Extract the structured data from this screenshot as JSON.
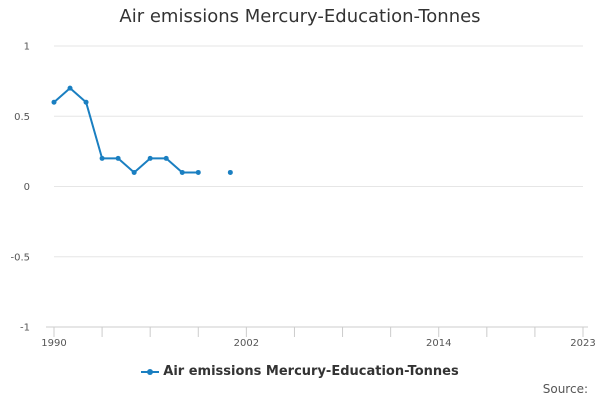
{
  "chart_data": {
    "type": "line",
    "title": "Air emissions Mercury-Education-Tonnes",
    "xlabel": "",
    "ylabel": "",
    "x_range": [
      1990,
      2023
    ],
    "ylim": [
      -1,
      1
    ],
    "x_ticks": [
      1990,
      2002,
      2014,
      2023
    ],
    "x_minor_ticks": [
      1990,
      1993,
      1996,
      1999,
      2002,
      2005,
      2008,
      2011,
      2014,
      2017,
      2020,
      2023
    ],
    "y_ticks": [
      1,
      0.5,
      0,
      -0.5,
      -1
    ],
    "grid": true,
    "legend_position": "bottom",
    "color": "#1a7fc1",
    "series": [
      {
        "name": "Air emissions Mercury-Education-Tonnes",
        "x": [
          1990,
          1991,
          1992,
          1993,
          1994,
          1995,
          1996,
          1997,
          1998,
          1999,
          2000,
          2001,
          2002,
          2003,
          2004,
          2005,
          2006,
          2007,
          2008,
          2009,
          2010,
          2011,
          2012,
          2013,
          2014,
          2015,
          2016,
          2017,
          2018,
          2019,
          2020,
          2021,
          2022,
          2023
        ],
        "y": [
          0.6,
          0.7,
          0.6,
          0.2,
          0.2,
          0.1,
          0.2,
          0.2,
          0.1,
          0.1,
          null,
          0.1,
          null,
          null,
          null,
          null,
          null,
          null,
          null,
          null,
          null,
          null,
          null,
          null,
          null,
          null,
          null,
          null,
          null,
          null,
          null,
          null,
          null,
          null
        ]
      }
    ]
  },
  "legend_label": "Air emissions Mercury-Education-Tonnes",
  "source_label": "Source:"
}
